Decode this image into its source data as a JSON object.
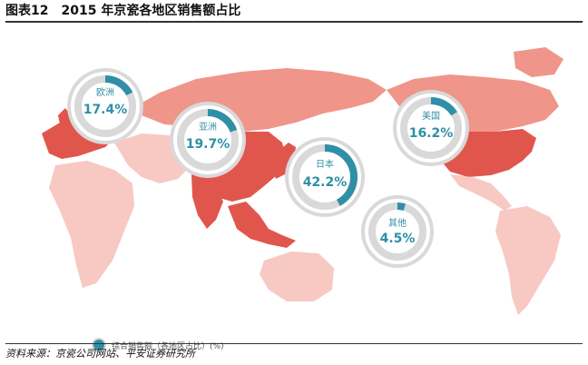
{
  "header": {
    "figure_no": "图表12",
    "title": "2015 年京瓷各地区销售额占比"
  },
  "chart_data": {
    "type": "pie",
    "title": "2015 年京瓷各地区销售额占比",
    "unit": "%",
    "legend": "综合销售额（各地区占比）(%)",
    "slices": [
      {
        "region": "欧洲",
        "value": 17.4,
        "label": "17.4%"
      },
      {
        "region": "亚洲",
        "value": 19.7,
        "label": "19.7%"
      },
      {
        "region": "日本",
        "value": 42.2,
        "label": "42.2%"
      },
      {
        "region": "美国",
        "value": 16.2,
        "label": "16.2%"
      },
      {
        "region": "其他",
        "value": 4.5,
        "label": "4.5%"
      }
    ]
  },
  "colors": {
    "accent": "#2f8fa6",
    "ring": "#d9d9d9",
    "land_light": "#f7c9c2",
    "land_mid": "#f0958a",
    "land_dark": "#e0564c"
  },
  "footer": {
    "source": "资料来源：京瓷公司网站、平安证券研究所"
  }
}
